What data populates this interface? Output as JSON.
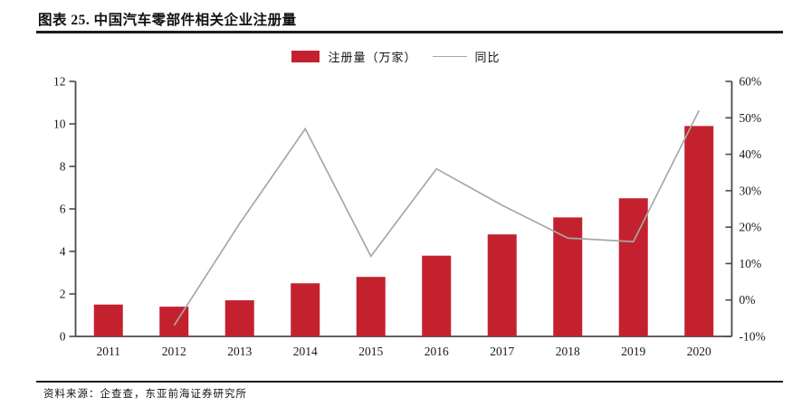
{
  "page": {
    "title": "图表 25. 中国汽车零部件相关企业注册量",
    "source_note": "资料来源：企查查，东亚前海证券研究所"
  },
  "legend": {
    "bar_label": "注册量（万家）",
    "line_label": "同比"
  },
  "colors": {
    "bar": "#c4212f",
    "line": "#a7a7a7",
    "axis": "#4a4a4a",
    "text": "#1a1a1a"
  },
  "chart_data": {
    "type": "bar+line",
    "title": "中国汽车零部件相关企业注册量",
    "categories": [
      "2011",
      "2012",
      "2013",
      "2014",
      "2015",
      "2016",
      "2017",
      "2018",
      "2019",
      "2020"
    ],
    "series": [
      {
        "name": "注册量（万家）",
        "type": "bar",
        "axis": "left",
        "values": [
          1.5,
          1.4,
          1.7,
          2.5,
          2.8,
          3.8,
          4.8,
          5.6,
          6.5,
          9.9
        ]
      },
      {
        "name": "同比",
        "type": "line",
        "axis": "right",
        "unit": "%",
        "values": [
          null,
          -7,
          21,
          47,
          12,
          36,
          26,
          17,
          16,
          52
        ]
      }
    ],
    "left_axis": {
      "min": 0,
      "max": 12,
      "step": 2,
      "ticks": [
        0,
        2,
        4,
        6,
        8,
        10,
        12
      ],
      "tick_labels": [
        "0",
        "2",
        "4",
        "6",
        "8",
        "10",
        "12"
      ]
    },
    "right_axis": {
      "min": -10,
      "max": 60,
      "step": 10,
      "ticks": [
        -10,
        0,
        10,
        20,
        30,
        40,
        50,
        60
      ],
      "tick_labels": [
        "-10%",
        "0%",
        "10%",
        "20%",
        "30%",
        "40%",
        "50%",
        "60%"
      ]
    },
    "grid": false,
    "legend_position": "top-center"
  }
}
